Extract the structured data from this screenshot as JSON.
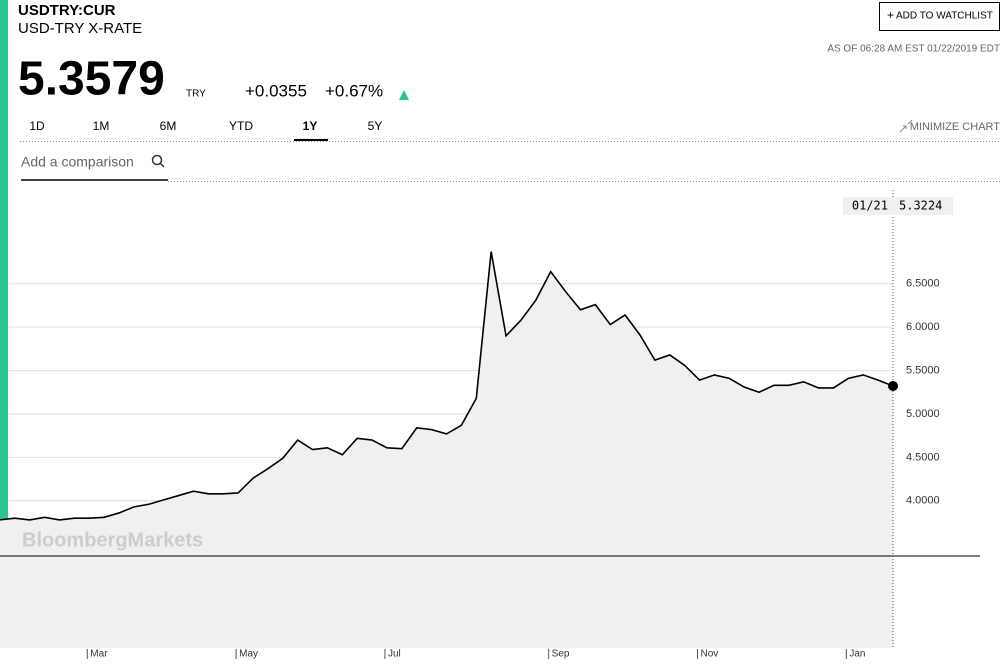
{
  "header": {
    "ticker": "USDTRY:CUR",
    "name": "USD-TRY X-RATE",
    "watchlist_button": "ADD TO WATCHLIST",
    "as_of": "AS OF 06:28 AM EST 01/22/2019 EDT"
  },
  "quote": {
    "price": "5.3579",
    "currency": "TRY",
    "change": "+0.0355",
    "change_percent": "+0.67%"
  },
  "tabs": [
    "1D",
    "1M",
    "6M",
    "YTD",
    "1Y",
    "5Y"
  ],
  "active_tab": "1Y",
  "minimize": "MINIMIZE CHART",
  "comparison_placeholder": "Add a comparison",
  "watermark": "BloombergMarkets",
  "chart_data": {
    "type": "line",
    "color": "#000000",
    "fill": "#f0f0f0",
    "grid": true,
    "crosshair_date": "01/21",
    "categories": [
      null,
      null,
      null,
      null,
      null,
      null,
      "Mar",
      null,
      null,
      null,
      null,
      null,
      null,
      null,
      null,
      null,
      "May",
      null,
      null,
      null,
      null,
      null,
      null,
      null,
      null,
      null,
      "Jul",
      null,
      null,
      null,
      null,
      null,
      null,
      null,
      null,
      null,
      null,
      "Sep",
      null,
      null,
      null,
      null,
      null,
      null,
      null,
      null,
      null,
      "Nov",
      null,
      null,
      null,
      null,
      null,
      null,
      null,
      null,
      null,
      "Jan",
      null,
      null,
      null
    ],
    "values": [
      3.78,
      3.8,
      3.78,
      3.81,
      3.78,
      3.8,
      3.8,
      3.81,
      3.86,
      3.93,
      3.96,
      4.01,
      4.06,
      4.11,
      4.08,
      4.08,
      4.09,
      4.26,
      4.37,
      4.49,
      4.7,
      4.59,
      4.61,
      4.53,
      4.72,
      4.7,
      4.61,
      4.6,
      4.84,
      4.82,
      4.77,
      4.87,
      5.18,
      6.87,
      5.9,
      6.08,
      6.31,
      6.64,
      6.41,
      6.2,
      6.26,
      6.03,
      6.14,
      5.91,
      5.62,
      5.68,
      5.56,
      5.39,
      5.45,
      5.41,
      5.31,
      5.25,
      5.33,
      5.33,
      5.37,
      5.3,
      5.3,
      5.41,
      5.45,
      5.39,
      5.3224
    ],
    "ylim": [
      3.364,
      7.58
    ],
    "yticks": [
      {
        "value": 4,
        "label": "4.0000"
      },
      {
        "value": 4.5,
        "label": "4.5000"
      },
      {
        "value": 5,
        "label": "5.0000"
      },
      {
        "value": 5.5,
        "label": "5.5000"
      },
      {
        "value": 6,
        "label": "6.0000"
      },
      {
        "value": 6.5,
        "label": "6.5000"
      }
    ]
  }
}
